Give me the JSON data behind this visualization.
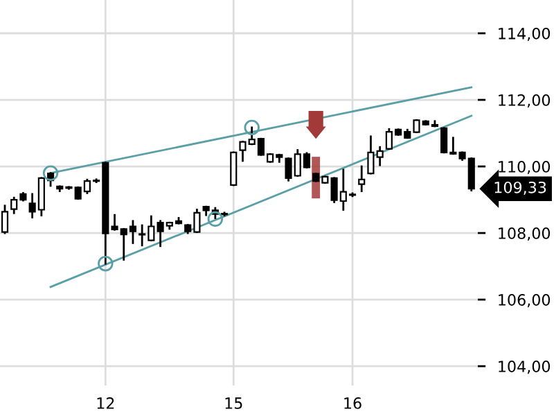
{
  "chart_data": {
    "type": "candlestick",
    "categories": [
      null,
      null,
      null,
      null,
      null,
      null,
      null,
      null,
      null,
      null,
      null,
      "12",
      null,
      null,
      null,
      null,
      null,
      null,
      null,
      null,
      null,
      null,
      null,
      null,
      null,
      "15",
      null,
      null,
      null,
      null,
      null,
      null,
      null,
      null,
      null,
      null,
      null,
      null,
      "16",
      null,
      null,
      null,
      null,
      null,
      null,
      null,
      null,
      null,
      null,
      null,
      null,
      null
    ],
    "ohlc": [
      [
        108.03,
        108.82,
        108.0,
        108.64
      ],
      [
        108.72,
        109.06,
        108.6,
        109.0
      ],
      [
        109.17,
        109.2,
        108.98,
        109.0
      ],
      [
        108.89,
        109.17,
        108.47,
        108.64
      ],
      [
        108.7,
        109.65,
        108.53,
        109.65
      ],
      [
        109.79,
        109.8,
        109.42,
        109.58
      ],
      [
        109.4,
        109.4,
        109.26,
        109.33
      ],
      [
        109.38,
        109.38,
        109.33,
        109.35
      ],
      [
        109.37,
        109.37,
        109.03,
        109.03
      ],
      [
        109.25,
        109.6,
        109.2,
        109.56
      ],
      [
        109.58,
        109.61,
        109.53,
        109.56
      ],
      [
        110.11,
        110.11,
        107.08,
        107.99
      ],
      [
        108.2,
        108.54,
        108.1,
        108.11
      ],
      [
        108.12,
        108.12,
        107.2,
        107.96
      ],
      [
        108.2,
        108.36,
        107.7,
        108.05
      ],
      [
        107.97,
        108.23,
        107.63,
        107.95
      ],
      [
        107.78,
        108.5,
        107.78,
        108.2
      ],
      [
        108.31,
        108.36,
        107.61,
        108.05
      ],
      [
        108.22,
        108.31,
        108.13,
        108.31
      ],
      [
        108.36,
        108.45,
        108.29,
        108.29
      ],
      [
        108.24,
        108.24,
        108.0,
        108.05
      ],
      [
        108.03,
        108.7,
        108.03,
        108.61
      ],
      [
        108.79,
        108.79,
        108.54,
        108.68
      ],
      [
        108.68,
        108.75,
        108.45,
        108.57
      ],
      [
        108.58,
        108.61,
        108.53,
        108.56
      ],
      [
        109.44,
        110.42,
        109.44,
        110.42
      ],
      [
        110.49,
        110.74,
        110.17,
        110.74
      ],
      [
        110.67,
        111.17,
        110.67,
        110.81
      ],
      [
        110.83,
        110.83,
        110.35,
        110.35
      ],
      [
        110.14,
        110.37,
        110.14,
        110.37
      ],
      [
        110.35,
        110.35,
        110.14,
        110.28
      ],
      [
        110.24,
        110.24,
        109.58,
        109.65
      ],
      [
        109.72,
        110.49,
        109.72,
        110.37
      ],
      [
        110.37,
        110.4,
        109.97,
        109.97
      ],
      [
        109.78,
        109.78,
        109.56,
        109.56
      ],
      [
        109.51,
        109.69,
        109.51,
        109.69
      ],
      [
        109.65,
        109.65,
        108.93,
        108.99
      ],
      [
        108.96,
        109.9,
        108.7,
        109.24
      ],
      [
        109.16,
        109.19,
        109.11,
        109.14
      ],
      [
        109.47,
        110.0,
        109.26,
        109.61
      ],
      [
        109.79,
        110.9,
        109.79,
        110.42
      ],
      [
        110.28,
        110.58,
        110.04,
        110.46
      ],
      [
        110.53,
        111.12,
        110.53,
        111.04
      ],
      [
        111.11,
        111.11,
        110.95,
        110.95
      ],
      [
        111.04,
        111.1,
        110.86,
        110.86
      ],
      [
        111.03,
        111.39,
        111.03,
        111.39
      ],
      [
        111.36,
        111.36,
        111.26,
        111.26
      ],
      [
        111.25,
        111.36,
        111.21,
        111.21
      ],
      [
        111.15,
        111.15,
        110.42,
        110.42
      ],
      [
        110.42,
        110.86,
        110.38,
        110.38
      ],
      [
        110.42,
        110.42,
        110.2,
        110.24
      ],
      [
        110.24,
        110.24,
        109.28,
        109.33
      ]
    ],
    "series": [
      {
        "type": "line",
        "color": "#5b9fa6",
        "values": [
          null,
          null,
          null,
          null,
          null,
          109.8,
          null,
          null,
          null,
          null,
          null,
          null,
          null,
          null,
          null,
          null,
          null,
          null,
          null,
          null,
          null,
          null,
          null,
          null,
          null,
          null,
          null,
          null,
          null,
          null,
          null,
          null,
          null,
          null,
          null,
          null,
          null,
          null,
          null,
          null,
          null,
          null,
          null,
          null,
          null,
          null,
          null,
          null,
          null,
          null,
          null,
          112.38
        ]
      },
      {
        "type": "line",
        "color": "#5b9fa6",
        "values": [
          null,
          null,
          null,
          null,
          null,
          106.38,
          null,
          null,
          null,
          null,
          null,
          null,
          null,
          null,
          null,
          null,
          null,
          null,
          null,
          null,
          null,
          null,
          null,
          null,
          null,
          null,
          null,
          null,
          null,
          null,
          null,
          null,
          null,
          null,
          null,
          null,
          null,
          null,
          null,
          null,
          null,
          null,
          null,
          null,
          null,
          null,
          null,
          null,
          null,
          null,
          null,
          111.52
        ]
      },
      {
        "type": "scatter",
        "color": "#5b9fa6",
        "marker": "circle",
        "values": [
          null,
          null,
          null,
          null,
          null,
          109.8,
          null,
          null,
          null,
          null,
          null,
          107.08,
          null,
          null,
          null,
          null,
          null,
          null,
          null,
          null,
          null,
          null,
          null,
          108.42,
          null,
          null,
          null,
          111.17,
          null,
          null,
          null,
          null,
          null,
          null,
          null,
          null,
          null,
          null,
          null,
          null,
          null,
          null,
          null,
          null,
          null,
          null,
          null,
          null,
          null,
          null,
          null,
          null
        ]
      }
    ],
    "ylim": [
      103.42,
      115
    ],
    "yticks": [
      {
        "value": 104,
        "label": "104,00"
      },
      {
        "value": 106,
        "label": "106,00"
      },
      {
        "value": 108,
        "label": "108,00"
      },
      {
        "value": 110,
        "label": "110,00"
      },
      {
        "value": 112,
        "label": "112,00"
      },
      {
        "value": 114,
        "label": "114,00"
      }
    ],
    "grid": true,
    "annotations": [
      "109,33"
    ]
  }
}
